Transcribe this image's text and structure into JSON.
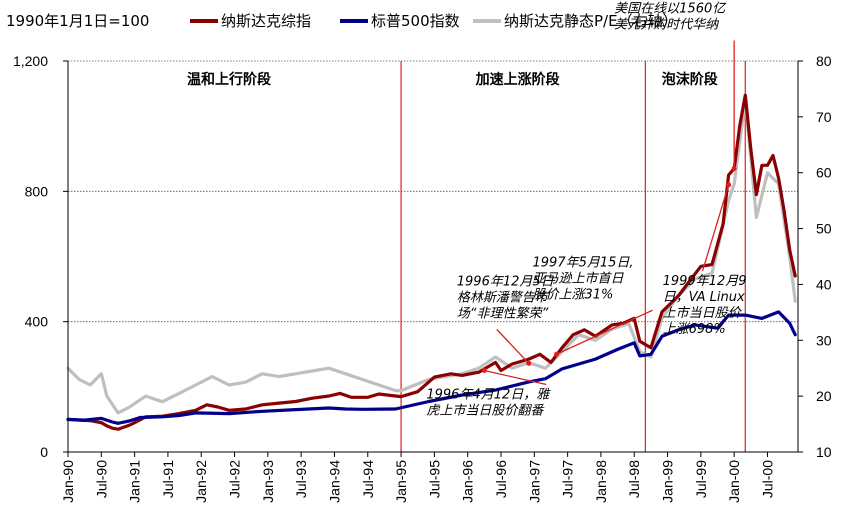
{
  "chart_data": {
    "type": "line",
    "base_note": "1990年1月1日=100",
    "x_ticks": [
      "Jan-90",
      "Jul-90",
      "Jan-91",
      "Jul-91",
      "Jan-92",
      "Jul-92",
      "Jan-93",
      "Jul-93",
      "Jan-94",
      "Jul-94",
      "Jan-95",
      "Jul-95",
      "Jan-96",
      "Jul-96",
      "Jan-97",
      "Jul-97",
      "Jan-98",
      "Jul-98",
      "Jan-99",
      "Jul-99",
      "Jan-00",
      "Jul-00"
    ],
    "y_left": {
      "ylim": [
        0,
        1200
      ],
      "ticks": [
        "0",
        "400",
        "800",
        "1,200"
      ]
    },
    "y_right": {
      "ylim": [
        10,
        80
      ],
      "ticks": [
        "10",
        "20",
        "30",
        "40",
        "50",
        "60",
        "70",
        "80"
      ]
    },
    "series": [
      {
        "name": "纳斯达克综指",
        "axis": "left",
        "color": "#8b0000",
        "points": [
          [
            "1990-01",
            100
          ],
          [
            "1990-03",
            98
          ],
          [
            "1990-05",
            96
          ],
          [
            "1990-07",
            90
          ],
          [
            "1990-08",
            80
          ],
          [
            "1990-09",
            73
          ],
          [
            "1990-10",
            70
          ],
          [
            "1990-11",
            76
          ],
          [
            "1990-12",
            82
          ],
          [
            "1991-01",
            90
          ],
          [
            "1991-03",
            108
          ],
          [
            "1991-06",
            110
          ],
          [
            "1991-09",
            118
          ],
          [
            "1991-12",
            128
          ],
          [
            "1992-02",
            145
          ],
          [
            "1992-04",
            138
          ],
          [
            "1992-06",
            128
          ],
          [
            "1992-09",
            132
          ],
          [
            "1992-12",
            145
          ],
          [
            "1993-03",
            150
          ],
          [
            "1993-06",
            155
          ],
          [
            "1993-09",
            165
          ],
          [
            "1993-12",
            172
          ],
          [
            "1994-02",
            180
          ],
          [
            "1994-04",
            168
          ],
          [
            "1994-07",
            168
          ],
          [
            "1994-09",
            178
          ],
          [
            "1994-12",
            172
          ],
          [
            "1995-01",
            170
          ],
          [
            "1995-04",
            185
          ],
          [
            "1995-07",
            230
          ],
          [
            "1995-10",
            240
          ],
          [
            "1995-12",
            235
          ],
          [
            "1996-03",
            245
          ],
          [
            "1996-06",
            275
          ],
          [
            "1996-07",
            250
          ],
          [
            "1996-09",
            270
          ],
          [
            "1996-12",
            285
          ],
          [
            "1997-02",
            300
          ],
          [
            "1997-04",
            275
          ],
          [
            "1997-06",
            320
          ],
          [
            "1997-08",
            360
          ],
          [
            "1997-10",
            375
          ],
          [
            "1997-12",
            355
          ],
          [
            "1998-03",
            390
          ],
          [
            "1998-05",
            395
          ],
          [
            "1998-07",
            410
          ],
          [
            "1998-08",
            340
          ],
          [
            "1998-10",
            320
          ],
          [
            "1998-12",
            430
          ],
          [
            "1999-03",
            480
          ],
          [
            "1999-05",
            525
          ],
          [
            "1999-07",
            570
          ],
          [
            "1999-09",
            575
          ],
          [
            "1999-11",
            700
          ],
          [
            "1999-12",
            850
          ],
          [
            "2000-01",
            870
          ],
          [
            "2000-02",
            1000
          ],
          [
            "2000-03",
            1095
          ],
          [
            "2000-04",
            930
          ],
          [
            "2000-05",
            790
          ],
          [
            "2000-06",
            880
          ],
          [
            "2000-07",
            880
          ],
          [
            "2000-08",
            910
          ],
          [
            "2000-09",
            840
          ],
          [
            "2000-10",
            740
          ],
          [
            "2000-11",
            620
          ],
          [
            "2000-12",
            540
          ]
        ]
      },
      {
        "name": "标普500指数",
        "axis": "left",
        "color": "#00008b",
        "points": [
          [
            "1990-01",
            100
          ],
          [
            "1990-04",
            98
          ],
          [
            "1990-07",
            103
          ],
          [
            "1990-09",
            92
          ],
          [
            "1990-10",
            88
          ],
          [
            "1990-12",
            95
          ],
          [
            "1991-02",
            106
          ],
          [
            "1991-06",
            108
          ],
          [
            "1991-09",
            112
          ],
          [
            "1991-12",
            120
          ],
          [
            "1992-06",
            118
          ],
          [
            "1992-12",
            125
          ],
          [
            "1993-06",
            130
          ],
          [
            "1993-12",
            135
          ],
          [
            "1994-03",
            132
          ],
          [
            "1994-06",
            131
          ],
          [
            "1994-12",
            132
          ],
          [
            "1995-06",
            155
          ],
          [
            "1995-12",
            175
          ],
          [
            "1996-06",
            190
          ],
          [
            "1996-12",
            215
          ],
          [
            "1997-03",
            225
          ],
          [
            "1997-06",
            255
          ],
          [
            "1997-10",
            275
          ],
          [
            "1997-12",
            285
          ],
          [
            "1998-04",
            315
          ],
          [
            "1998-07",
            335
          ],
          [
            "1998-08",
            295
          ],
          [
            "1998-10",
            300
          ],
          [
            "1998-12",
            355
          ],
          [
            "1999-03",
            375
          ],
          [
            "1999-06",
            390
          ],
          [
            "1999-10",
            380
          ],
          [
            "1999-12",
            420
          ],
          [
            "2000-03",
            420
          ],
          [
            "2000-06",
            410
          ],
          [
            "2000-09",
            430
          ],
          [
            "2000-11",
            395
          ],
          [
            "2000-12",
            360
          ]
        ]
      },
      {
        "name": "纳斯达克静态P/E（右轴）",
        "axis": "right",
        "color": "#bfbfbf",
        "points": [
          [
            "1990-01",
            25
          ],
          [
            "1990-03",
            23
          ],
          [
            "1990-05",
            22
          ],
          [
            "1990-07",
            24
          ],
          [
            "1990-08",
            20
          ],
          [
            "1990-10",
            17
          ],
          [
            "1990-12",
            18
          ],
          [
            "1991-03",
            20
          ],
          [
            "1991-06",
            19
          ],
          [
            "1991-09",
            20.5
          ],
          [
            "1991-12",
            22
          ],
          [
            "1992-03",
            23.5
          ],
          [
            "1992-06",
            22
          ],
          [
            "1992-09",
            22.5
          ],
          [
            "1992-12",
            24
          ],
          [
            "1993-03",
            23.5
          ],
          [
            "1993-06",
            24
          ],
          [
            "1993-09",
            24.5
          ],
          [
            "1993-12",
            25
          ],
          [
            "1994-03",
            24
          ],
          [
            "1994-06",
            23
          ],
          [
            "1994-09",
            22
          ],
          [
            "1994-12",
            21
          ],
          [
            "1995-01",
            21
          ],
          [
            "1995-06",
            23
          ],
          [
            "1995-12",
            24
          ],
          [
            "1996-03",
            25
          ],
          [
            "1996-06",
            27
          ],
          [
            "1996-09",
            25
          ],
          [
            "1996-12",
            26
          ],
          [
            "1997-03",
            25
          ],
          [
            "1997-06",
            28
          ],
          [
            "1997-09",
            31
          ],
          [
            "1997-12",
            30
          ],
          [
            "1998-03",
            32
          ],
          [
            "1998-06",
            33
          ],
          [
            "1998-08",
            28
          ],
          [
            "1998-10",
            27
          ],
          [
            "1998-12",
            34
          ],
          [
            "1999-03",
            38
          ],
          [
            "1999-06",
            41
          ],
          [
            "1999-09",
            42
          ],
          [
            "1999-12",
            55
          ],
          [
            "2000-01",
            58
          ],
          [
            "2000-03",
            73
          ],
          [
            "2000-05",
            52
          ],
          [
            "2000-07",
            60
          ],
          [
            "2000-09",
            58
          ],
          [
            "2000-11",
            45
          ],
          [
            "2000-12",
            37
          ]
        ]
      }
    ],
    "phase_dividers": [
      "1995-01",
      "1998-09",
      "2000-03"
    ],
    "phases": [
      {
        "label": "温和上行阶段",
        "at": "1992-06"
      },
      {
        "label": "加速上涨阶段",
        "at": "1996-10"
      },
      {
        "label": "泡沫阶段",
        "at": "1999-05"
      }
    ],
    "annotations": [
      {
        "lines": [
          "1996年12月5日",
          "格林斯潘警告市",
          "场“非理性繁荣”"
        ],
        "date": "1996-12",
        "value": 272
      },
      {
        "lines": [
          "1997年5月15日,",
          "亚马逊上市首日",
          "股价上涨31%"
        ],
        "date": "1997-05",
        "value": 300
      },
      {
        "lines": [
          "2000年1月10日,",
          "美国在线以1560亿",
          "美元并购时代华纳"
        ],
        "date": "2000-01",
        "value": 870
      },
      {
        "lines": [
          "1996年4月12日，雅",
          "虎上市当日股价翻番"
        ],
        "date": "1996-04",
        "value": 250
      },
      {
        "lines": [
          "1999年12月9",
          "日，VA Linux",
          "上市当日股价",
          "上涨698%"
        ],
        "date": "1999-12",
        "value": 820
      }
    ]
  }
}
